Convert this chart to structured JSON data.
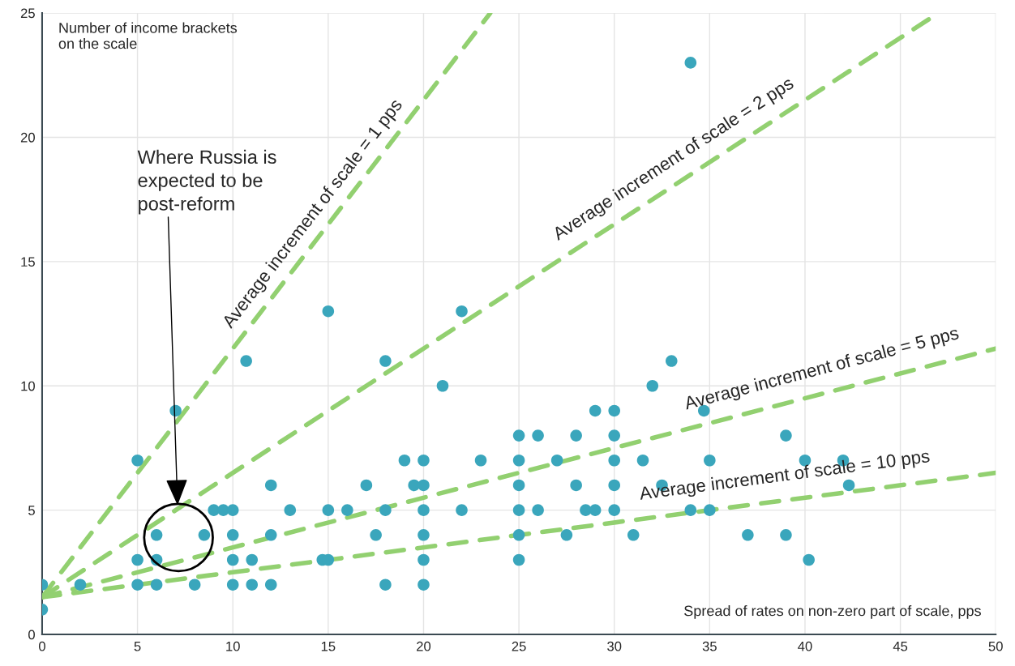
{
  "chart_data": {
    "type": "scatter",
    "xlabel": "Spread of rates on non-zero part of scale, pps",
    "ylabel": "Number of income brackets\non the scale",
    "xlim": [
      0,
      50
    ],
    "ylim": [
      0,
      25
    ],
    "xticks": [
      0,
      5,
      10,
      15,
      20,
      25,
      30,
      35,
      40,
      45,
      50
    ],
    "yticks": [
      0,
      5,
      10,
      15,
      20,
      25
    ],
    "grid": true,
    "series": [
      {
        "marker": "circle",
        "color": "#3aa6bc",
        "x": [
          0,
          0,
          2,
          5,
          5,
          5,
          6,
          6,
          6,
          7,
          8,
          8.5,
          9,
          9.5,
          10,
          10,
          10,
          10,
          10.7,
          11,
          11,
          12,
          12,
          12,
          13,
          14.7,
          15,
          15,
          15,
          16,
          17,
          17.5,
          18,
          18,
          18,
          19,
          19.5,
          20,
          20,
          20,
          20,
          20,
          20,
          21,
          22,
          22,
          23,
          25,
          25,
          25,
          25,
          25,
          25,
          26,
          26,
          27,
          27.5,
          28,
          28,
          28.5,
          29,
          29,
          30,
          30,
          30,
          30,
          30,
          31,
          31.5,
          32,
          32.5,
          33,
          34,
          34,
          34.7,
          35,
          35,
          37,
          39,
          39,
          40,
          40.2,
          42,
          42.3
        ],
        "values": [
          1,
          2,
          2,
          7,
          3,
          2,
          4,
          3,
          2,
          9,
          2,
          4,
          5,
          5,
          5,
          4,
          3,
          2,
          11,
          3,
          2,
          6,
          4,
          2,
          5,
          3,
          3,
          5,
          13,
          5,
          6,
          4,
          11,
          5,
          2,
          7,
          6,
          7,
          6,
          5,
          4,
          3,
          2,
          10,
          13,
          5,
          7,
          8,
          7,
          6,
          5,
          4,
          3,
          8,
          5,
          7,
          4,
          8,
          6,
          5,
          9,
          5,
          9,
          8,
          7,
          6,
          5,
          4,
          7,
          10,
          6,
          11,
          23,
          5,
          9,
          7,
          5,
          4,
          8,
          4,
          7,
          3,
          7,
          6
        ]
      },
      {
        "type": "line",
        "name": "Average increment of scale = 1 pps",
        "color": "#92d070",
        "line_style": "dashed",
        "x": [
          0,
          23.5
        ],
        "values": [
          1.5,
          25
        ]
      },
      {
        "type": "line",
        "name": "Average increment of scale = 2 pps",
        "color": "#92d070",
        "line_style": "dashed",
        "x": [
          0,
          47
        ],
        "values": [
          1.5,
          25
        ]
      },
      {
        "type": "line",
        "name": "Average increment of scale = 5 pps",
        "color": "#92d070",
        "line_style": "dashed",
        "x": [
          0,
          50
        ],
        "values": [
          1.5,
          11.5
        ]
      },
      {
        "type": "line",
        "name": "Average increment of scale = 10 pps",
        "color": "#92d070",
        "line_style": "dashed",
        "x": [
          0,
          50
        ],
        "values": [
          1.5,
          6.5
        ]
      }
    ],
    "annotations": [
      {
        "text": "Where Russia is\nexpected to be\npost-reform",
        "x": 7.1,
        "y": 5.2
      }
    ]
  }
}
